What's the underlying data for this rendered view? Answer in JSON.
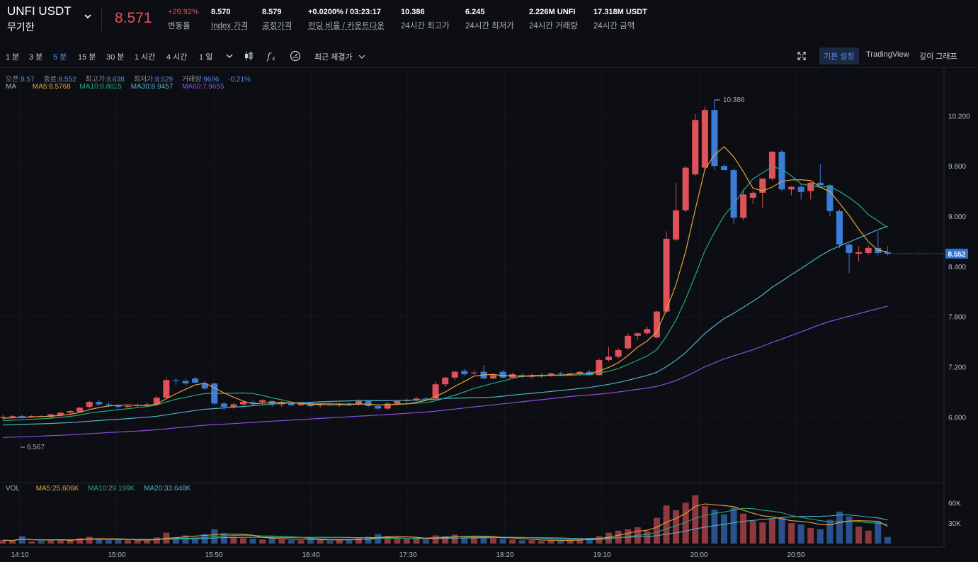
{
  "header": {
    "symbol": "UNFI USDT",
    "contract_type": "무기한",
    "last_price": "8.571",
    "stats": [
      {
        "value": "+29.92%",
        "label": "변동률",
        "red": true
      },
      {
        "value": "8.570",
        "label": "Index 가격",
        "underline": true
      },
      {
        "value": "8.579",
        "label": "공정가격",
        "underline": true
      },
      {
        "value": "+0.0200% / 03:23:17",
        "label": "펀딩 비율 / 카운트다운",
        "underline": true
      },
      {
        "value": "10.386",
        "label": "24시간 최고가"
      },
      {
        "value": "6.245",
        "label": "24시간 최저가"
      },
      {
        "value": "2.226M UNFI",
        "label": "24시간 거래량"
      },
      {
        "value": "17.318M USDT",
        "label": "24시간 금액"
      }
    ]
  },
  "toolbar": {
    "timeframes": [
      "1 분",
      "3 분",
      "5 분",
      "15 분",
      "30 분",
      "1 시간",
      "4 시간",
      "1 일"
    ],
    "active_timeframe": "5 분",
    "last_price_dropdown": "최근 체결가",
    "views": [
      "기본 설정",
      "TradingView",
      "깊이 그래프"
    ],
    "active_view": "기본 설정"
  },
  "ohlc_legend": {
    "open_label": "오픈:",
    "open": "8.57",
    "close_label": "종료:",
    "close": "8.552",
    "high_label": "최고가:",
    "high": "8.638",
    "low_label": "최저가:",
    "low": "8.529",
    "vol_label": "거래량:",
    "vol": "9696",
    "change": "-0.21%"
  },
  "ma_legend": {
    "label": "MA",
    "ma5": "MA5:8.5768",
    "ma10": "MA10:8.8825",
    "ma30": "MA30:8.9457",
    "ma60": "MA60:7.9655"
  },
  "vol_legend": {
    "label": "VOL",
    "ma5": "MA5:25.606K",
    "ma10": "MA10:29.199K",
    "ma20": "MA20:33.648K"
  },
  "colors": {
    "up": "#e0525a",
    "down": "#3c7bd8",
    "ma5": "#e8a33c",
    "ma10": "#26a97a",
    "ma30": "#4fb0c6",
    "ma60": "#8b50e0",
    "current_price_tag": "#2f6fd6"
  },
  "chart_data": {
    "type": "candlestick",
    "price_axis": {
      "ticks": [
        "10.200",
        "9.600",
        "9.000",
        "8.400",
        "7.800",
        "7.200",
        "6.600"
      ],
      "min": 5.95,
      "max": 10.5
    },
    "volume_axis": {
      "ticks": [
        "60K",
        "30K"
      ],
      "max": 75000
    },
    "time_axis": [
      "14:10",
      "15:00",
      "15:50",
      "16:40",
      "17:30",
      "18:20",
      "19:10",
      "20:00",
      "20:50"
    ],
    "high_marker": "10.386",
    "low_marker": "6.567",
    "current_price": "8.552",
    "candles": [
      {
        "o": 6.6,
        "h": 6.62,
        "l": 6.57,
        "c": 6.6,
        "v": 5000
      },
      {
        "o": 6.6,
        "h": 6.62,
        "l": 6.58,
        "c": 6.61,
        "v": 4000
      },
      {
        "o": 6.61,
        "h": 6.63,
        "l": 6.58,
        "c": 6.6,
        "v": 11000
      },
      {
        "o": 6.6,
        "h": 6.62,
        "l": 6.59,
        "c": 6.61,
        "v": 3000
      },
      {
        "o": 6.61,
        "h": 6.62,
        "l": 6.6,
        "c": 6.6,
        "v": 4000
      },
      {
        "o": 6.6,
        "h": 6.64,
        "l": 6.59,
        "c": 6.63,
        "v": 5000
      },
      {
        "o": 6.62,
        "h": 6.66,
        "l": 6.61,
        "c": 6.65,
        "v": 6000
      },
      {
        "o": 6.65,
        "h": 6.68,
        "l": 6.62,
        "c": 6.67,
        "v": 6000
      },
      {
        "o": 6.66,
        "h": 6.72,
        "l": 6.65,
        "c": 6.71,
        "v": 8000
      },
      {
        "o": 6.72,
        "h": 6.79,
        "l": 6.7,
        "c": 6.78,
        "v": 10000
      },
      {
        "o": 6.78,
        "h": 6.8,
        "l": 6.73,
        "c": 6.75,
        "v": 6000
      },
      {
        "o": 6.75,
        "h": 6.78,
        "l": 6.72,
        "c": 6.74,
        "v": 5000
      },
      {
        "o": 6.74,
        "h": 6.75,
        "l": 6.7,
        "c": 6.72,
        "v": 6000
      },
      {
        "o": 6.72,
        "h": 6.74,
        "l": 6.7,
        "c": 6.73,
        "v": 5000
      },
      {
        "o": 6.73,
        "h": 6.76,
        "l": 6.71,
        "c": 6.74,
        "v": 5000
      },
      {
        "o": 6.74,
        "h": 6.77,
        "l": 6.72,
        "c": 6.75,
        "v": 4000
      },
      {
        "o": 6.75,
        "h": 6.85,
        "l": 6.73,
        "c": 6.83,
        "v": 9000
      },
      {
        "o": 6.83,
        "h": 7.07,
        "l": 6.82,
        "c": 7.04,
        "v": 16000
      },
      {
        "o": 7.04,
        "h": 7.07,
        "l": 6.98,
        "c": 7.03,
        "v": 9000
      },
      {
        "o": 7.03,
        "h": 7.05,
        "l": 6.97,
        "c": 7.0,
        "v": 12000
      },
      {
        "o": 7.06,
        "h": 7.08,
        "l": 7.0,
        "c": 7.01,
        "v": 9000
      },
      {
        "o": 7.0,
        "h": 7.03,
        "l": 6.92,
        "c": 6.94,
        "v": 14000
      },
      {
        "o": 7.0,
        "h": 7.01,
        "l": 6.74,
        "c": 6.76,
        "v": 21000
      },
      {
        "o": 6.76,
        "h": 6.78,
        "l": 6.68,
        "c": 6.72,
        "v": 15000
      },
      {
        "o": 6.72,
        "h": 6.77,
        "l": 6.7,
        "c": 6.75,
        "v": 10000
      },
      {
        "o": 6.75,
        "h": 6.79,
        "l": 6.73,
        "c": 6.78,
        "v": 8000
      },
      {
        "o": 6.78,
        "h": 6.8,
        "l": 6.74,
        "c": 6.77,
        "v": 7000
      },
      {
        "o": 6.78,
        "h": 6.81,
        "l": 6.75,
        "c": 6.8,
        "v": 6000
      },
      {
        "o": 6.79,
        "h": 6.8,
        "l": 6.72,
        "c": 6.75,
        "v": 9000
      },
      {
        "o": 6.75,
        "h": 6.79,
        "l": 6.72,
        "c": 6.77,
        "v": 6000
      },
      {
        "o": 6.76,
        "h": 6.78,
        "l": 6.73,
        "c": 6.74,
        "v": 5000
      },
      {
        "o": 6.74,
        "h": 6.77,
        "l": 6.73,
        "c": 6.76,
        "v": 5000
      },
      {
        "o": 6.77,
        "h": 6.78,
        "l": 6.72,
        "c": 6.73,
        "v": 8000
      },
      {
        "o": 6.74,
        "h": 6.76,
        "l": 6.71,
        "c": 6.75,
        "v": 5000
      },
      {
        "o": 6.75,
        "h": 6.77,
        "l": 6.73,
        "c": 6.74,
        "v": 4000
      },
      {
        "o": 6.74,
        "h": 6.77,
        "l": 6.72,
        "c": 6.76,
        "v": 5000
      },
      {
        "o": 6.76,
        "h": 6.78,
        "l": 6.73,
        "c": 6.74,
        "v": 6000
      },
      {
        "o": 6.75,
        "h": 6.81,
        "l": 6.73,
        "c": 6.79,
        "v": 9000
      },
      {
        "o": 6.79,
        "h": 6.8,
        "l": 6.72,
        "c": 6.73,
        "v": 10000
      },
      {
        "o": 6.73,
        "h": 6.75,
        "l": 6.68,
        "c": 6.7,
        "v": 14000
      },
      {
        "o": 6.7,
        "h": 6.78,
        "l": 6.68,
        "c": 6.76,
        "v": 11000
      },
      {
        "o": 6.76,
        "h": 6.8,
        "l": 6.74,
        "c": 6.79,
        "v": 8000
      },
      {
        "o": 6.79,
        "h": 6.82,
        "l": 6.76,
        "c": 6.8,
        "v": 7000
      },
      {
        "o": 6.8,
        "h": 6.84,
        "l": 6.78,
        "c": 6.82,
        "v": 7000
      },
      {
        "o": 6.82,
        "h": 6.84,
        "l": 6.8,
        "c": 6.81,
        "v": 6000
      },
      {
        "o": 6.82,
        "h": 7.02,
        "l": 6.81,
        "c": 6.99,
        "v": 12000
      },
      {
        "o": 6.99,
        "h": 7.08,
        "l": 6.96,
        "c": 7.07,
        "v": 11000
      },
      {
        "o": 7.07,
        "h": 7.15,
        "l": 7.04,
        "c": 7.14,
        "v": 13000
      },
      {
        "o": 7.15,
        "h": 7.17,
        "l": 7.09,
        "c": 7.11,
        "v": 10000
      },
      {
        "o": 7.12,
        "h": 7.16,
        "l": 7.1,
        "c": 7.13,
        "v": 9000
      },
      {
        "o": 7.14,
        "h": 7.22,
        "l": 7.05,
        "c": 7.06,
        "v": 11000
      },
      {
        "o": 7.06,
        "h": 7.12,
        "l": 7.05,
        "c": 7.1,
        "v": 8000
      },
      {
        "o": 7.14,
        "h": 7.16,
        "l": 7.06,
        "c": 7.07,
        "v": 7000
      },
      {
        "o": 7.07,
        "h": 7.13,
        "l": 7.06,
        "c": 7.11,
        "v": 6000
      },
      {
        "o": 7.1,
        "h": 7.12,
        "l": 7.06,
        "c": 7.08,
        "v": 5000
      },
      {
        "o": 7.08,
        "h": 7.12,
        "l": 7.06,
        "c": 7.09,
        "v": 5000
      },
      {
        "o": 7.09,
        "h": 7.12,
        "l": 7.07,
        "c": 7.1,
        "v": 4000
      },
      {
        "o": 7.1,
        "h": 7.13,
        "l": 7.08,
        "c": 7.12,
        "v": 5000
      },
      {
        "o": 7.12,
        "h": 7.14,
        "l": 7.09,
        "c": 7.11,
        "v": 5000
      },
      {
        "o": 7.11,
        "h": 7.13,
        "l": 7.09,
        "c": 7.12,
        "v": 5000
      },
      {
        "o": 7.12,
        "h": 7.15,
        "l": 7.09,
        "c": 7.14,
        "v": 7000
      },
      {
        "o": 7.14,
        "h": 7.16,
        "l": 7.1,
        "c": 7.1,
        "v": 8000
      },
      {
        "o": 7.1,
        "h": 7.3,
        "l": 7.09,
        "c": 7.28,
        "v": 11000
      },
      {
        "o": 7.28,
        "h": 7.44,
        "l": 7.26,
        "c": 7.32,
        "v": 16000
      },
      {
        "o": 7.32,
        "h": 7.42,
        "l": 7.3,
        "c": 7.4,
        "v": 19000
      },
      {
        "o": 7.42,
        "h": 7.6,
        "l": 7.4,
        "c": 7.57,
        "v": 21000
      },
      {
        "o": 7.57,
        "h": 7.61,
        "l": 7.52,
        "c": 7.6,
        "v": 24000
      },
      {
        "o": 7.6,
        "h": 7.68,
        "l": 7.58,
        "c": 7.65,
        "v": 18000
      },
      {
        "o": 7.55,
        "h": 7.87,
        "l": 7.54,
        "c": 7.86,
        "v": 38000
      },
      {
        "o": 7.86,
        "h": 8.82,
        "l": 7.85,
        "c": 8.73,
        "v": 56000
      },
      {
        "o": 8.72,
        "h": 9.4,
        "l": 8.7,
        "c": 9.07,
        "v": 49000
      },
      {
        "o": 9.07,
        "h": 9.6,
        "l": 9.05,
        "c": 9.58,
        "v": 60000
      },
      {
        "o": 9.5,
        "h": 10.22,
        "l": 9.48,
        "c": 10.15,
        "v": 71000
      },
      {
        "o": 9.58,
        "h": 10.31,
        "l": 9.55,
        "c": 10.27,
        "v": 55000
      },
      {
        "o": 10.27,
        "h": 10.39,
        "l": 9.55,
        "c": 9.6,
        "v": 50000
      },
      {
        "o": 9.6,
        "h": 9.62,
        "l": 9.55,
        "c": 9.55,
        "v": 43000
      },
      {
        "o": 9.55,
        "h": 9.57,
        "l": 8.9,
        "c": 8.98,
        "v": 53000
      },
      {
        "o": 8.98,
        "h": 9.32,
        "l": 8.95,
        "c": 9.26,
        "v": 44000
      },
      {
        "o": 9.22,
        "h": 9.3,
        "l": 9.15,
        "c": 9.28,
        "v": 33000
      },
      {
        "o": 9.28,
        "h": 9.45,
        "l": 9.1,
        "c": 9.45,
        "v": 31000
      },
      {
        "o": 9.45,
        "h": 9.78,
        "l": 9.43,
        "c": 9.77,
        "v": 36000
      },
      {
        "o": 9.77,
        "h": 9.79,
        "l": 9.3,
        "c": 9.32,
        "v": 38000
      },
      {
        "o": 9.32,
        "h": 9.36,
        "l": 9.25,
        "c": 9.35,
        "v": 30000
      },
      {
        "o": 9.35,
        "h": 9.38,
        "l": 9.2,
        "c": 9.29,
        "v": 28000
      },
      {
        "o": 9.3,
        "h": 9.41,
        "l": 9.2,
        "c": 9.4,
        "v": 23000
      },
      {
        "o": 9.4,
        "h": 9.62,
        "l": 9.36,
        "c": 9.37,
        "v": 21000
      },
      {
        "o": 9.37,
        "h": 9.38,
        "l": 9.0,
        "c": 9.06,
        "v": 35000
      },
      {
        "o": 9.06,
        "h": 9.08,
        "l": 8.62,
        "c": 8.66,
        "v": 47000
      },
      {
        "o": 8.66,
        "h": 8.68,
        "l": 8.32,
        "c": 8.56,
        "v": 40000
      },
      {
        "o": 8.55,
        "h": 8.64,
        "l": 8.46,
        "c": 8.57,
        "v": 25000
      },
      {
        "o": 8.56,
        "h": 8.65,
        "l": 8.54,
        "c": 8.62,
        "v": 19000
      },
      {
        "o": 8.62,
        "h": 8.82,
        "l": 8.53,
        "c": 8.56,
        "v": 33000
      },
      {
        "o": 8.57,
        "h": 8.64,
        "l": 8.53,
        "c": 8.55,
        "v": 9696
      }
    ]
  }
}
